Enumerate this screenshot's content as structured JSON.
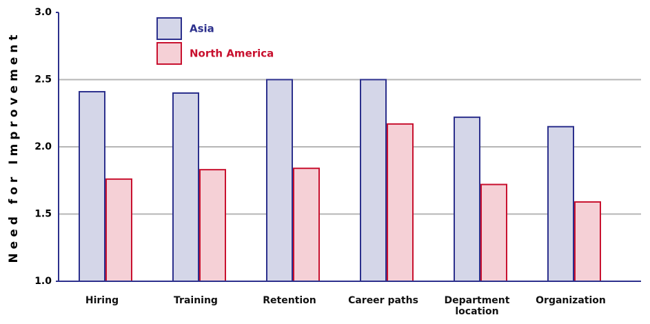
{
  "chart_data": {
    "type": "bar",
    "y_label": "Need for Improvement",
    "categories": [
      "Hiring",
      "Training",
      "Retention",
      "Career paths",
      "Department location",
      "Organization"
    ],
    "series": [
      {
        "name": "Asia",
        "color": "#d4d6e8",
        "edge": "#2b2f8c",
        "values": [
          2.41,
          2.4,
          2.5,
          2.5,
          2.22,
          2.15
        ]
      },
      {
        "name": "North America",
        "color": "#f5d0d6",
        "edge": "#c8102e",
        "values": [
          1.76,
          1.83,
          1.84,
          2.17,
          1.72,
          1.59
        ]
      }
    ],
    "ylim": [
      1.0,
      3.0
    ],
    "yticks": [
      {
        "value": 1.0,
        "label": "1.0"
      },
      {
        "value": 1.5,
        "label": "1.5"
      },
      {
        "value": 2.0,
        "label": "2.0"
      },
      {
        "value": 2.5,
        "label": "2.5"
      },
      {
        "value": 3.0,
        "label": "3.0"
      }
    ],
    "grid": true
  }
}
